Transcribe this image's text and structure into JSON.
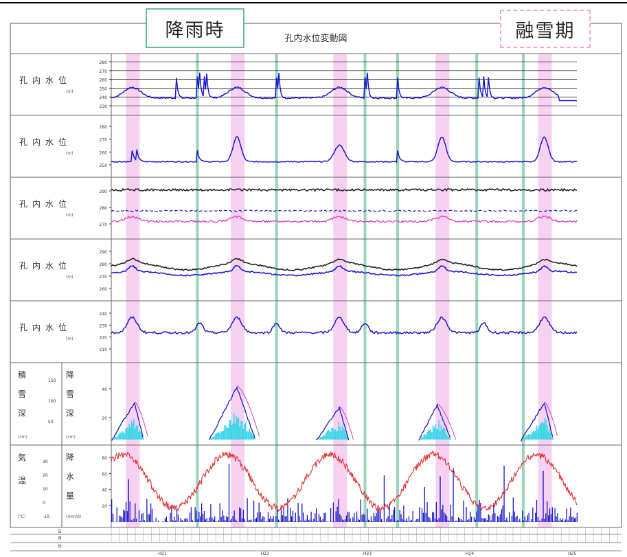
{
  "tags": {
    "rain": "降雨時",
    "snowmelt": "融雪期"
  },
  "chart_title": "孔内水位変動図",
  "colors": {
    "rain_band": "#8fcfb3",
    "snow_band": "#f4c2ec",
    "water_level": "#1a1acc",
    "black_series": "#222222",
    "magenta_series": "#d63fbd",
    "snow_fill": "#39d6e8",
    "temperature": "#e02a2a",
    "precip_bars": "#1515c8"
  },
  "chart_data": [
    {
      "type": "line",
      "panel": 1,
      "row_label": "孔内水位",
      "row_unit": "(m)",
      "y_ticks": [
        "280",
        "270",
        "260",
        "250",
        "240",
        "230"
      ],
      "series": [
        {
          "color": "#1a1acc",
          "trace": "spiky-peaks"
        }
      ],
      "grid": true
    },
    {
      "type": "line",
      "panel": 2,
      "row_label": "孔内水位",
      "row_unit": "(m)",
      "y_ticks": [
        "280",
        "270",
        "260",
        "250"
      ],
      "series": [
        {
          "color": "#1a1acc",
          "trace": "seasonal-peaks"
        }
      ]
    },
    {
      "type": "line",
      "panel": 3,
      "row_label": "孔内水位",
      "row_unit": "(m)",
      "y_ticks": [
        "290",
        "280",
        "270"
      ],
      "series": [
        {
          "color": "#222222",
          "trace": "flat"
        },
        {
          "color": "#1a1acc",
          "trace": "flat-dashed"
        },
        {
          "color": "#d63fbd",
          "trace": "small-bumps"
        }
      ]
    },
    {
      "type": "line",
      "panel": 4,
      "row_label": "孔内水位",
      "row_unit": "(m)",
      "y_ticks": [
        "290",
        "280",
        "270",
        "260"
      ],
      "series": [
        {
          "color": "#222222",
          "trace": "annual-wave"
        },
        {
          "color": "#1a1acc",
          "trace": "annual-wave-low"
        }
      ]
    },
    {
      "type": "line",
      "panel": 5,
      "row_label": "孔内水位",
      "row_unit": "(m)",
      "y_ticks": [
        "240",
        "230",
        "220",
        "210"
      ],
      "series": [
        {
          "color": "#1a1acc",
          "trace": "annual-wave-noisy"
        }
      ]
    },
    {
      "type": "area",
      "panel": 6,
      "row_label_left": "積雪深",
      "row_label_right": "降雪深",
      "row_unit": "(cm)",
      "y_ticks_left": [
        "150",
        "100",
        "50"
      ],
      "y_ticks_right": [
        "40",
        "20"
      ],
      "seasons": [
        {
          "start": 0.0,
          "peak": 0.05,
          "end": 0.07,
          "max": 0.55
        },
        {
          "start": 0.21,
          "peak": 0.27,
          "end": 0.31,
          "max": 0.78
        },
        {
          "start": 0.44,
          "peak": 0.49,
          "end": 0.51,
          "max": 0.48
        },
        {
          "start": 0.66,
          "peak": 0.7,
          "end": 0.73,
          "max": 0.52
        },
        {
          "start": 0.88,
          "peak": 0.93,
          "end": 0.95,
          "max": 0.55
        }
      ]
    },
    {
      "type": "line+bar",
      "panel": 7,
      "row_label_left": "気温",
      "row_label_right": "降水量",
      "row_unit_left": "(℃)",
      "row_unit_right": "(mm/d)",
      "y_ticks_left": [
        "30",
        "20",
        "10",
        "0",
        "-10"
      ],
      "y_ticks_right": [
        "80",
        "60",
        "40",
        "20"
      ],
      "temperature_peaks": [
        0.14,
        0.36,
        0.58,
        0.8
      ],
      "temperature_troughs": [
        0.0,
        0.24,
        0.47,
        0.69,
        0.91
      ]
    }
  ],
  "rain_event_positions": [
    0.185,
    0.355,
    0.545,
    0.615,
    0.785,
    0.885
  ],
  "snowmelt_positions": [
    0.045,
    0.27,
    0.49,
    0.71,
    0.93
  ],
  "footer_rows": [
    "日",
    "月",
    "年"
  ],
  "footer_years": [
    "H21",
    "H22",
    "H23",
    "H24",
    "H25"
  ]
}
